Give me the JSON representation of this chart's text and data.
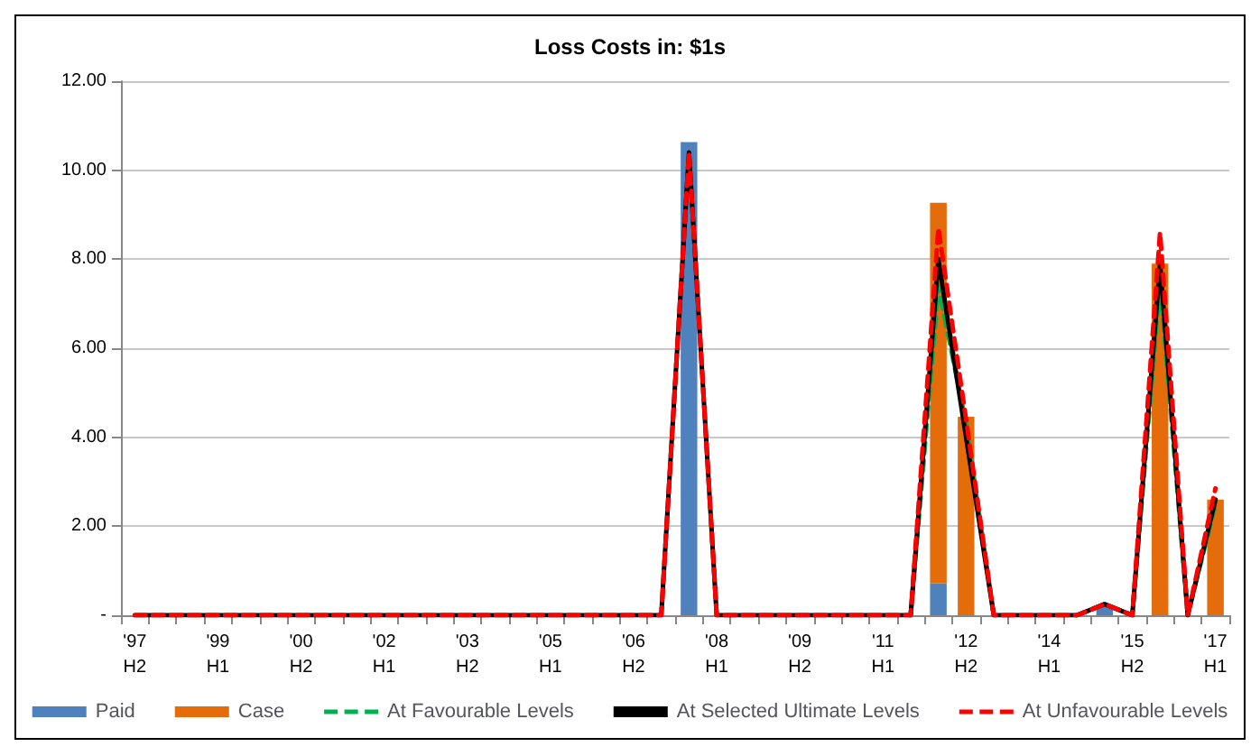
{
  "chart_data": {
    "type": "bar",
    "title": "Loss Costs in: $1s",
    "categories": [
      "'97 H2",
      null,
      null,
      "'99 H1",
      null,
      null,
      "'00 H2",
      null,
      null,
      "'02 H1",
      null,
      null,
      "'03 H2",
      null,
      null,
      "'05 H1",
      null,
      null,
      "'06 H2",
      null,
      null,
      "'08 H1",
      null,
      null,
      "'09 H2",
      null,
      null,
      "'11 H1",
      null,
      null,
      "'12 H2",
      null,
      null,
      "'14 H1",
      null,
      null,
      "'15 H2",
      null,
      null,
      "'17 H1"
    ],
    "stacked": true,
    "series": [
      {
        "name": "Paid",
        "type": "bar",
        "color": "#4f81bd",
        "values": [
          0,
          0,
          0,
          0,
          0,
          0,
          0,
          0,
          0,
          0,
          0,
          0,
          0,
          0,
          0,
          0,
          0,
          0,
          0,
          0,
          10.63,
          0,
          0,
          0,
          0,
          0,
          0,
          0,
          0,
          0.72,
          0,
          0,
          0,
          0,
          0,
          0.2,
          0,
          0,
          0,
          0
        ]
      },
      {
        "name": "Case",
        "type": "bar",
        "color": "#e46c0a",
        "values": [
          0,
          0,
          0,
          0,
          0,
          0,
          0,
          0,
          0,
          0,
          0,
          0,
          0,
          0,
          0,
          0,
          0,
          0,
          0,
          0,
          0,
          0,
          0,
          0,
          0,
          0,
          0,
          0,
          0,
          8.55,
          4.46,
          0,
          0,
          0,
          0,
          0,
          0,
          7.9,
          0,
          2.6
        ]
      },
      {
        "name": "At Favourable Levels",
        "type": "line",
        "line_style": "dashed",
        "color": "#00b050",
        "values": [
          null,
          null,
          null,
          null,
          null,
          null,
          null,
          null,
          null,
          null,
          null,
          null,
          null,
          null,
          null,
          null,
          null,
          null,
          null,
          null,
          null,
          null,
          null,
          null,
          null,
          null,
          null,
          null,
          0,
          7.4,
          4.3,
          0,
          null,
          null,
          0,
          0.25,
          0,
          7.5,
          0,
          2.5
        ]
      },
      {
        "name": "At Selected Ultimate Levels",
        "type": "line",
        "line_style": "solid",
        "color": "#000000",
        "values": [
          0,
          0,
          0,
          0,
          0,
          0,
          0,
          0,
          0,
          0,
          0,
          0,
          0,
          0,
          0,
          0,
          0,
          0,
          0,
          0,
          10.4,
          0,
          0,
          0,
          0,
          0,
          0,
          0,
          0,
          8.0,
          4.0,
          0,
          0,
          0,
          0,
          0.25,
          0,
          7.9,
          0,
          2.6
        ]
      },
      {
        "name": "At Unfavourable Levels",
        "type": "line",
        "line_style": "dashed",
        "color": "#ff0000",
        "values": [
          0,
          0,
          0,
          0,
          0,
          0,
          0,
          0,
          0,
          0,
          0,
          0,
          0,
          0,
          0,
          0,
          0,
          0,
          0,
          0,
          10.4,
          0,
          0,
          0,
          0,
          0,
          0,
          0,
          0,
          8.7,
          4.4,
          0,
          0,
          0,
          0,
          0.25,
          0,
          8.6,
          0,
          2.85
        ]
      }
    ],
    "ylim": [
      0,
      12
    ],
    "yticks": [
      {
        "value": 0,
        "label": "-"
      },
      {
        "value": 2,
        "label": "2.00"
      },
      {
        "value": 4,
        "label": "4.00"
      },
      {
        "value": 6,
        "label": "6.00"
      },
      {
        "value": 8,
        "label": "8.00"
      },
      {
        "value": 10,
        "label": "10.00"
      },
      {
        "value": 12,
        "label": "12.00"
      }
    ],
    "grid": "y",
    "legend": "bottom",
    "marker": "none"
  }
}
